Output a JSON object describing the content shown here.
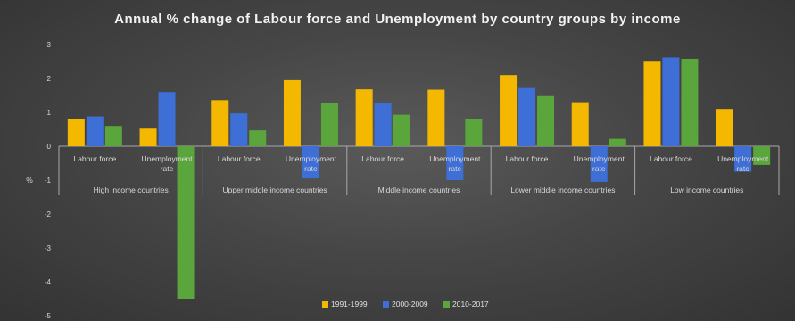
{
  "chart_data": {
    "type": "bar",
    "title": "Annual % change of Labour force and Unemployment by country groups by income",
    "ylabel": "%",
    "ylim": [
      -5,
      3
    ],
    "yticks": [
      "3",
      "2",
      "1",
      "0",
      "-1",
      "-2",
      "-3",
      "-4",
      "-5"
    ],
    "grid": false,
    "legend_position": "bottom",
    "groups": [
      "High income countries",
      "Upper middle income countries",
      "Middle income countries",
      "Lower middle income countries",
      "Low income countries"
    ],
    "subcategories": [
      [
        "Labour force"
      ],
      [
        "Unemployment",
        "rate"
      ]
    ],
    "series": [
      {
        "name": "1991-1999",
        "color": "#f5b800",
        "values": [
          0.8,
          0.52,
          1.36,
          1.95,
          1.68,
          1.67,
          2.1,
          1.3,
          2.52,
          1.1
        ]
      },
      {
        "name": "2000-2009",
        "color": "#3d6fd6",
        "values": [
          0.88,
          1.6,
          0.97,
          -0.95,
          1.28,
          -1.0,
          1.72,
          -1.05,
          2.62,
          -0.75
        ]
      },
      {
        "name": "2010-2017",
        "color": "#5aa63c",
        "values": [
          0.6,
          -4.5,
          0.47,
          1.28,
          0.93,
          0.8,
          1.48,
          0.22,
          2.58,
          -0.55
        ]
      }
    ]
  }
}
